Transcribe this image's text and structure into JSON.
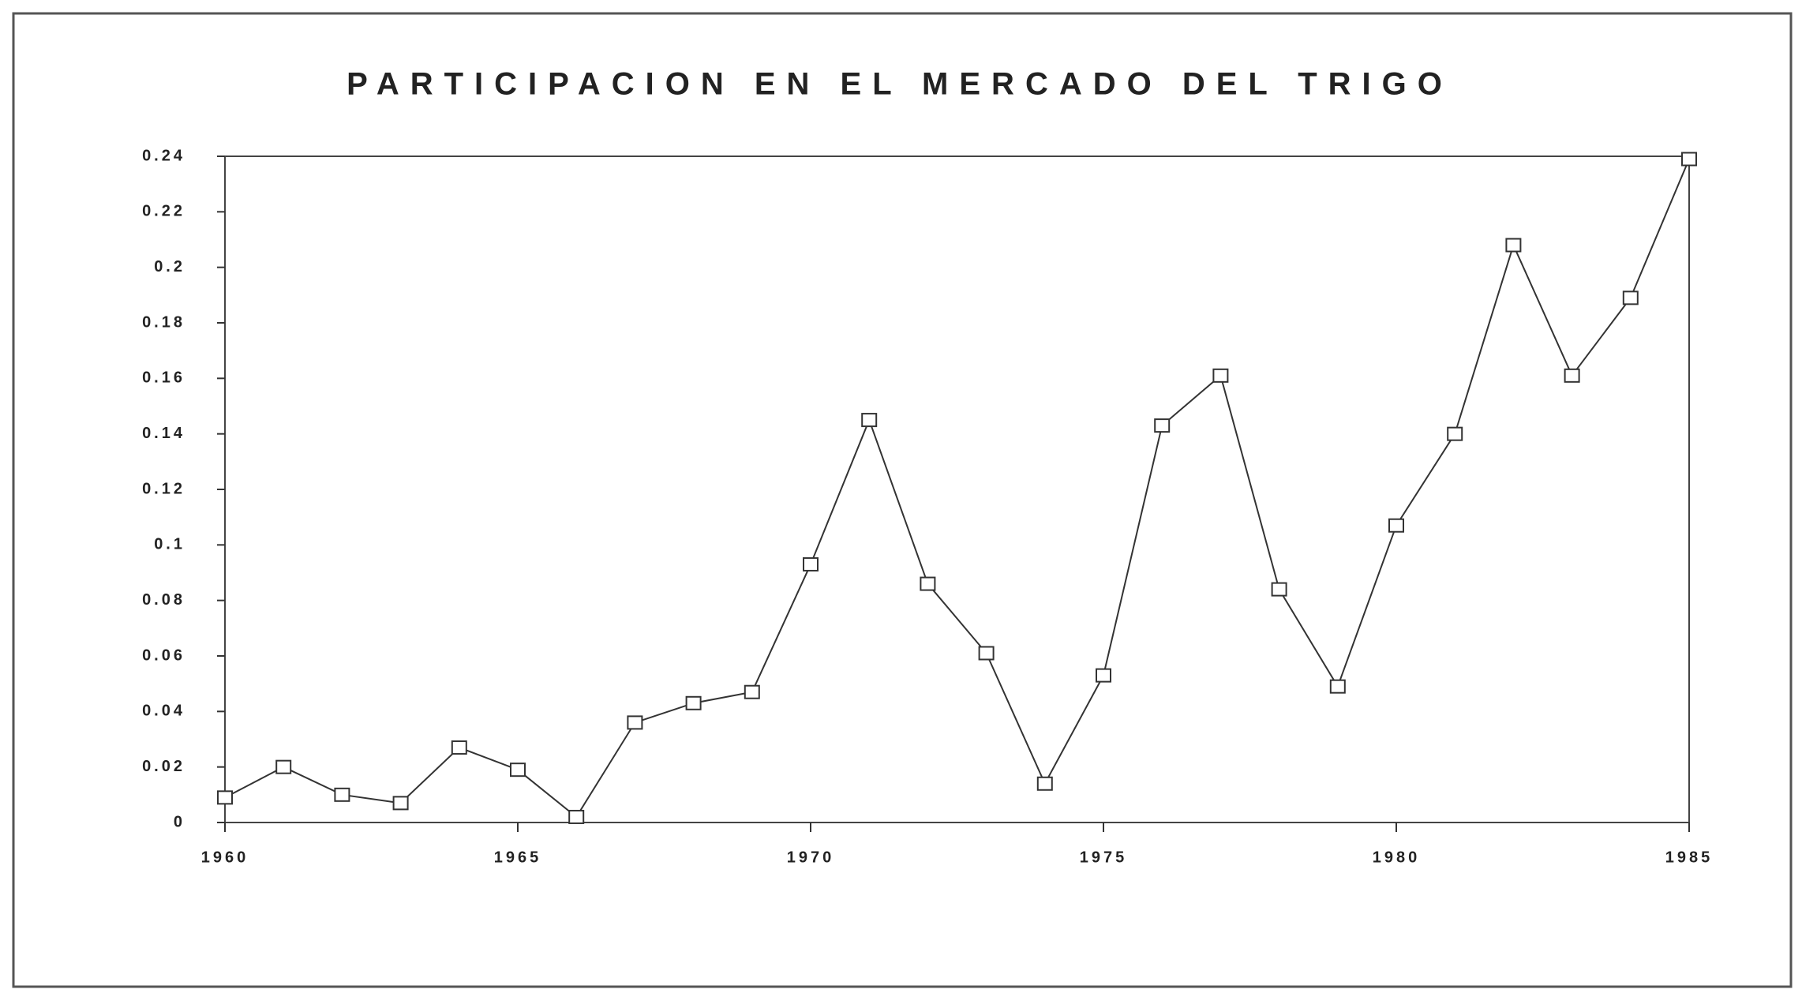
{
  "chart_data": {
    "type": "line",
    "title": "PARTICIPACION EN EL MERCADO DEL TRIGO",
    "x": [
      1960,
      1961,
      1962,
      1963,
      1964,
      1965,
      1966,
      1967,
      1968,
      1969,
      1970,
      1971,
      1972,
      1973,
      1974,
      1975,
      1976,
      1977,
      1978,
      1979,
      1980,
      1981,
      1982,
      1983,
      1984,
      1985
    ],
    "series": [
      {
        "color": "#333333",
        "values": [
          0.009,
          0.02,
          0.01,
          0.007,
          0.027,
          0.019,
          0.002,
          0.036,
          0.043,
          0.047,
          0.093,
          0.145,
          0.086,
          0.061,
          0.014,
          0.053,
          0.143,
          0.161,
          0.084,
          0.049,
          0.107,
          0.14,
          0.208,
          0.161,
          0.189,
          0.239
        ]
      }
    ],
    "xlim": [
      1960,
      1985
    ],
    "xticks": [
      1960,
      1965,
      1970,
      1975,
      1980,
      1985
    ],
    "ylim": [
      0,
      0.24
    ],
    "yticks": [
      0,
      0.02,
      0.04,
      0.06,
      0.08,
      0.1,
      0.12,
      0.14,
      0.16,
      0.18,
      0.2,
      0.22,
      0.24
    ]
  }
}
